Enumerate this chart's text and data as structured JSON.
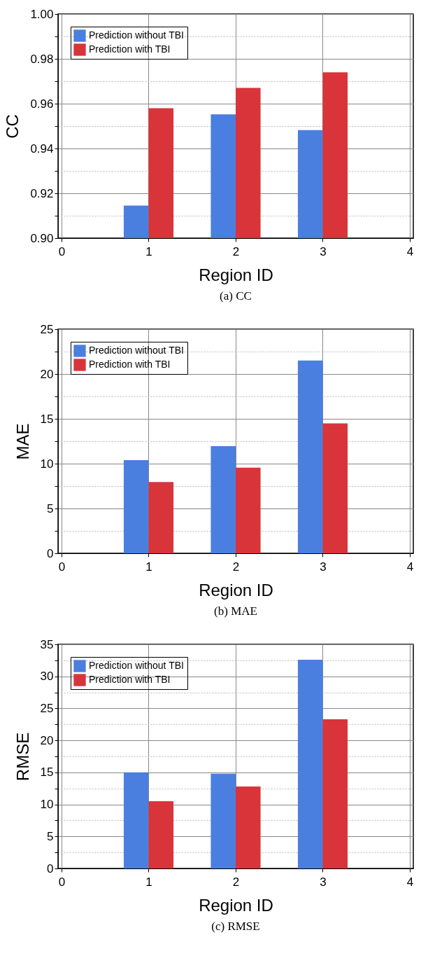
{
  "chart_data": [
    {
      "type": "bar",
      "title": "(a)  CC",
      "xlabel": "Region ID",
      "ylabel": "CC",
      "x": [
        1,
        2,
        3
      ],
      "xlim": [
        0,
        4
      ],
      "xticks": [
        0,
        1,
        2,
        3,
        4
      ],
      "ylim": [
        0.9,
        1.0
      ],
      "yticks": [
        {
          "value": 0.9,
          "label": "0.90"
        },
        {
          "value": 0.91,
          "label": null
        },
        0.92,
        {
          "value": 0.93,
          "label": null
        },
        0.94,
        {
          "value": 0.95,
          "label": null
        },
        0.96,
        {
          "value": 0.97,
          "label": null
        },
        0.98,
        {
          "value": 0.99,
          "label": null
        },
        {
          "value": 1.0,
          "label": "1.00"
        }
      ],
      "grid": true,
      "legend": "top left",
      "series": [
        {
          "name": "Prediction without TBI",
          "color": "#4a7fe0",
          "values": [
            0.9145,
            0.9552,
            0.9482
          ]
        },
        {
          "name": "Prediction with TBI",
          "color": "#d9343a",
          "values": [
            0.958,
            0.967,
            0.974
          ]
        }
      ]
    },
    {
      "type": "bar",
      "title": "(b)  MAE",
      "xlabel": "Region ID",
      "ylabel": "MAE",
      "x": [
        1,
        2,
        3
      ],
      "xlim": [
        0,
        4
      ],
      "xticks": [
        0,
        1,
        2,
        3,
        4
      ],
      "ylim": [
        0,
        25
      ],
      "yticks": [
        0,
        {
          "value": 2.5,
          "label": null
        },
        5,
        {
          "value": 7.5,
          "label": null
        },
        10,
        {
          "value": 12.5,
          "label": null
        },
        15,
        {
          "value": 17.5,
          "label": null
        },
        20,
        {
          "value": 22.5,
          "label": null
        },
        25
      ],
      "grid": true,
      "legend": "top left",
      "series": [
        {
          "name": "Prediction without TBI",
          "color": "#4a7fe0",
          "values": [
            10.4,
            11.95,
            21.5
          ]
        },
        {
          "name": "Prediction with TBI",
          "color": "#d9343a",
          "values": [
            7.95,
            9.55,
            14.5
          ]
        }
      ]
    },
    {
      "type": "bar",
      "title": "(c)  RMSE",
      "xlabel": "Region ID",
      "ylabel": "RMSE",
      "x": [
        1,
        2,
        3
      ],
      "xlim": [
        0,
        4
      ],
      "xticks": [
        0,
        1,
        2,
        3,
        4
      ],
      "ylim": [
        0,
        35
      ],
      "yticks": [
        0,
        {
          "value": 2.5,
          "label": null
        },
        5,
        {
          "value": 7.5,
          "label": null
        },
        10,
        {
          "value": 12.5,
          "label": null
        },
        15,
        {
          "value": 17.5,
          "label": null
        },
        20,
        {
          "value": 22.5,
          "label": null
        },
        25,
        {
          "value": 27.5,
          "label": null
        },
        30,
        {
          "value": 32.5,
          "label": null
        },
        35
      ],
      "grid": true,
      "legend": "top left",
      "series": [
        {
          "name": "Prediction without TBI",
          "color": "#4a7fe0",
          "values": [
            15.0,
            14.8,
            32.6
          ]
        },
        {
          "name": "Prediction with TBI",
          "color": "#d9343a",
          "values": [
            10.5,
            12.8,
            23.3
          ]
        }
      ]
    }
  ]
}
